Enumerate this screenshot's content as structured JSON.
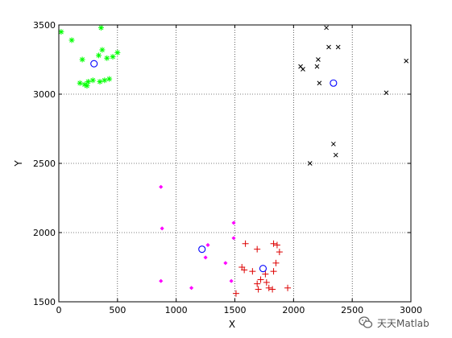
{
  "chart_data": {
    "type": "scatter",
    "xlabel": "X",
    "ylabel": "Y",
    "xlim": [
      0,
      3000
    ],
    "ylim": [
      1500,
      3500
    ],
    "xticks": [
      0,
      500,
      1000,
      1500,
      2000,
      2500,
      3000
    ],
    "yticks": [
      1500,
      2000,
      2500,
      3000,
      3500
    ],
    "grid": true,
    "series": [
      {
        "marker": "asterisk",
        "color": "#00ff00",
        "points": [
          [
            20,
            3450
          ],
          [
            110,
            3390
          ],
          [
            200,
            3250
          ],
          [
            360,
            3480
          ],
          [
            340,
            3280
          ],
          [
            370,
            3320
          ],
          [
            410,
            3260
          ],
          [
            460,
            3270
          ],
          [
            500,
            3300
          ],
          [
            180,
            3080
          ],
          [
            220,
            3070
          ],
          [
            250,
            3090
          ],
          [
            290,
            3100
          ],
          [
            350,
            3090
          ],
          [
            390,
            3100
          ],
          [
            430,
            3110
          ],
          [
            240,
            3060
          ]
        ]
      },
      {
        "marker": "x",
        "color": "#000000",
        "points": [
          [
            2280,
            3480
          ],
          [
            2210,
            3250
          ],
          [
            2060,
            3200
          ],
          [
            2080,
            3180
          ],
          [
            2200,
            3200
          ],
          [
            2300,
            3340
          ],
          [
            2380,
            3340
          ],
          [
            2960,
            3240
          ],
          [
            2220,
            3080
          ],
          [
            2790,
            3010
          ],
          [
            2340,
            2640
          ],
          [
            2360,
            2560
          ],
          [
            2140,
            2500
          ]
        ]
      },
      {
        "marker": "diamond",
        "color": "#ff00ff",
        "points": [
          [
            870,
            2330
          ],
          [
            880,
            2030
          ],
          [
            1490,
            2070
          ],
          [
            1490,
            1960
          ],
          [
            1270,
            1910
          ],
          [
            1250,
            1820
          ],
          [
            1420,
            1780
          ],
          [
            870,
            1650
          ],
          [
            1130,
            1600
          ],
          [
            1470,
            1650
          ]
        ]
      },
      {
        "marker": "plus",
        "color": "#dd0000",
        "points": [
          [
            1590,
            1920
          ],
          [
            1830,
            1920
          ],
          [
            1860,
            1910
          ],
          [
            1690,
            1880
          ],
          [
            1880,
            1860
          ],
          [
            1850,
            1780
          ],
          [
            1560,
            1750
          ],
          [
            1580,
            1730
          ],
          [
            1650,
            1720
          ],
          [
            1830,
            1720
          ],
          [
            1760,
            1700
          ],
          [
            1720,
            1660
          ],
          [
            1770,
            1640
          ],
          [
            1690,
            1630
          ],
          [
            1790,
            1600
          ],
          [
            1820,
            1590
          ],
          [
            1950,
            1600
          ],
          [
            1700,
            1590
          ],
          [
            1510,
            1560
          ]
        ]
      },
      {
        "marker": "circle",
        "color": "#0000ff",
        "points": [
          [
            300,
            3220
          ],
          [
            2340,
            3080
          ],
          [
            1220,
            1880
          ],
          [
            1740,
            1740
          ]
        ]
      }
    ]
  },
  "watermark": {
    "text": "天天Matlab",
    "icon": "wechat-icon"
  }
}
